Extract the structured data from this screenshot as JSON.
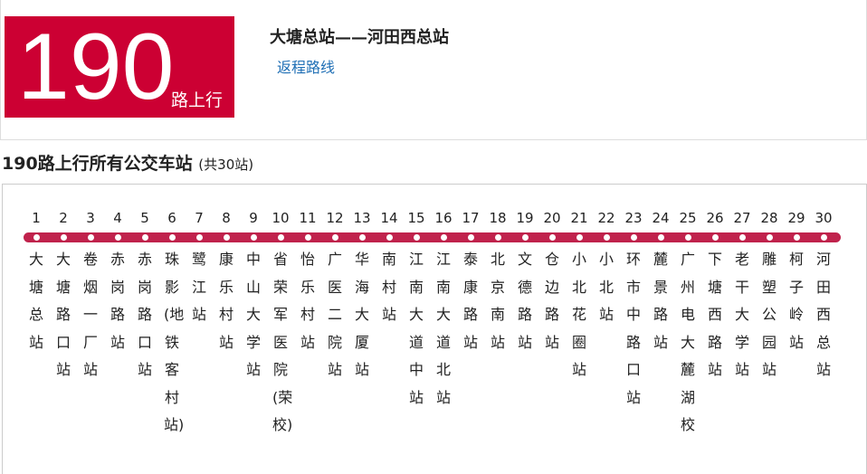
{
  "header": {
    "route_number": "190",
    "direction": "路上行",
    "terminals": "大塘总站——河田西总站",
    "return_link": "返程路线"
  },
  "section": {
    "title": "190路上行所有公交车站",
    "count": "(共30站)"
  },
  "stops": [
    {
      "number": "1",
      "name": "大塘总站"
    },
    {
      "number": "2",
      "name": "大塘路口站"
    },
    {
      "number": "3",
      "name": "卷烟一厂站"
    },
    {
      "number": "4",
      "name": "赤岗路站"
    },
    {
      "number": "5",
      "name": "赤岗路口站"
    },
    {
      "number": "6",
      "name": "珠影(地铁客村站)"
    },
    {
      "number": "7",
      "name": "鹭江站"
    },
    {
      "number": "8",
      "name": "康乐村站"
    },
    {
      "number": "9",
      "name": "中山大学站"
    },
    {
      "number": "10",
      "name": "省荣军医院(荣校)"
    },
    {
      "number": "11",
      "name": "怡乐村站"
    },
    {
      "number": "12",
      "name": "广医二院站"
    },
    {
      "number": "13",
      "name": "华海大厦站"
    },
    {
      "number": "14",
      "name": "南村站"
    },
    {
      "number": "15",
      "name": "江南大道中站"
    },
    {
      "number": "16",
      "name": "江南大道北站"
    },
    {
      "number": "17",
      "name": "泰康路站"
    },
    {
      "number": "18",
      "name": "北京南站"
    },
    {
      "number": "19",
      "name": "文德路站"
    },
    {
      "number": "20",
      "name": "仓边路站"
    },
    {
      "number": "21",
      "name": "小北花圈站"
    },
    {
      "number": "22",
      "name": "小北站"
    },
    {
      "number": "23",
      "name": "环市中路口站"
    },
    {
      "number": "24",
      "name": "麓景路站"
    },
    {
      "number": "25",
      "name": "广州电大麓湖校"
    },
    {
      "number": "26",
      "name": "下塘西路站"
    },
    {
      "number": "27",
      "name": "老干大学站"
    },
    {
      "number": "28",
      "name": "雕塑公园站"
    },
    {
      "number": "29",
      "name": "柯子岭站"
    },
    {
      "number": "30",
      "name": "河田西总站"
    }
  ]
}
